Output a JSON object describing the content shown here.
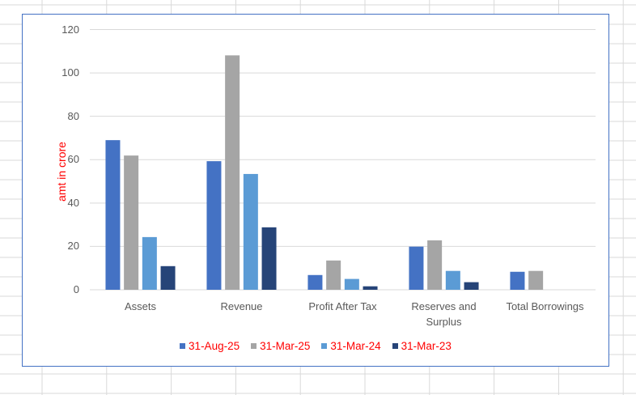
{
  "chart_data": {
    "type": "bar",
    "title": "",
    "xlabel": "",
    "ylabel": "amt in crore",
    "ylim": [
      0,
      120
    ],
    "yticks": [
      "0",
      "20",
      "40",
      "60",
      "80",
      "100",
      "120"
    ],
    "grid": true,
    "legend_position": "bottom",
    "categories": [
      "Assets",
      "Revenue",
      "Profit After Tax",
      "Reserves and Surplus",
      "Total Borrowings"
    ],
    "series": [
      {
        "name": "31-Aug-25",
        "color": "#4472c4",
        "values": [
          69.0,
          59.3,
          6.8,
          19.9,
          8.3
        ]
      },
      {
        "name": "31-Mar-25",
        "color": "#a5a5a5",
        "values": [
          61.9,
          108.1,
          13.5,
          22.8,
          8.7
        ]
      },
      {
        "name": "31-Mar-24",
        "color": "#5b9bd5",
        "values": [
          24.3,
          53.4,
          5.0,
          8.7,
          0
        ]
      },
      {
        "name": "31-Mar-23",
        "color": "#264478",
        "values": [
          10.9,
          28.8,
          1.6,
          3.5,
          0
        ]
      }
    ]
  }
}
